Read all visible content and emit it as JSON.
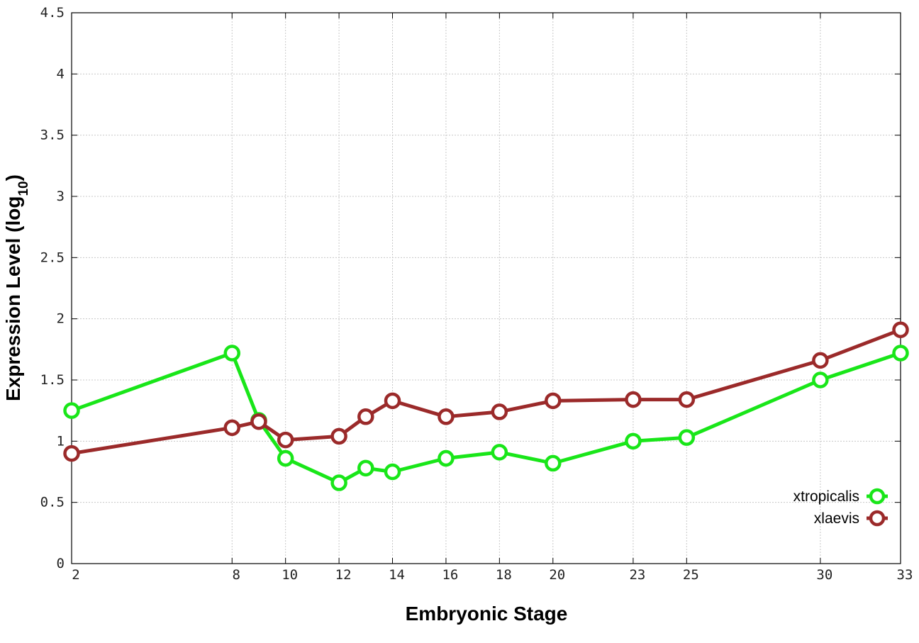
{
  "chart_data": {
    "type": "line",
    "xlabel": "Embryonic Stage",
    "ylabel_main": "Expression Level (log",
    "ylabel_sub": "10",
    "ylabel_close": ")",
    "xlim": [
      2,
      33
    ],
    "ylim": [
      0,
      4.5
    ],
    "x_ticks": [
      2,
      8,
      10,
      12,
      14,
      16,
      18,
      20,
      23,
      25,
      30,
      33
    ],
    "y_ticks": [
      0,
      0.5,
      1,
      1.5,
      2,
      2.5,
      3,
      3.5,
      4,
      4.5
    ],
    "y_tick_labels": [
      "0",
      "0.5",
      "1",
      "1.5",
      "2",
      "2.5",
      "3",
      "3.5",
      "4",
      "4.5"
    ],
    "grid": true,
    "legend_position": "bottom-right",
    "series": [
      {
        "name": "xtropicalis",
        "color": "#19e619",
        "points": [
          [
            2,
            1.25
          ],
          [
            8,
            1.72
          ],
          [
            9,
            1.17
          ],
          [
            10,
            0.86
          ],
          [
            12,
            0.66
          ],
          [
            13,
            0.78
          ],
          [
            14,
            0.75
          ],
          [
            16,
            0.86
          ],
          [
            18,
            0.91
          ],
          [
            20,
            0.82
          ],
          [
            23,
            1.0
          ],
          [
            25,
            1.03
          ],
          [
            30,
            1.5
          ],
          [
            33,
            1.72
          ]
        ]
      },
      {
        "name": "xlaevis",
        "color": "#9b2a2a",
        "points": [
          [
            2,
            0.9
          ],
          [
            8,
            1.11
          ],
          [
            9,
            1.16
          ],
          [
            10,
            1.01
          ],
          [
            12,
            1.04
          ],
          [
            13,
            1.2
          ],
          [
            14,
            1.33
          ],
          [
            16,
            1.2
          ],
          [
            18,
            1.24
          ],
          [
            20,
            1.33
          ],
          [
            23,
            1.34
          ],
          [
            25,
            1.34
          ],
          [
            30,
            1.66
          ],
          [
            33,
            1.91
          ]
        ]
      }
    ]
  }
}
